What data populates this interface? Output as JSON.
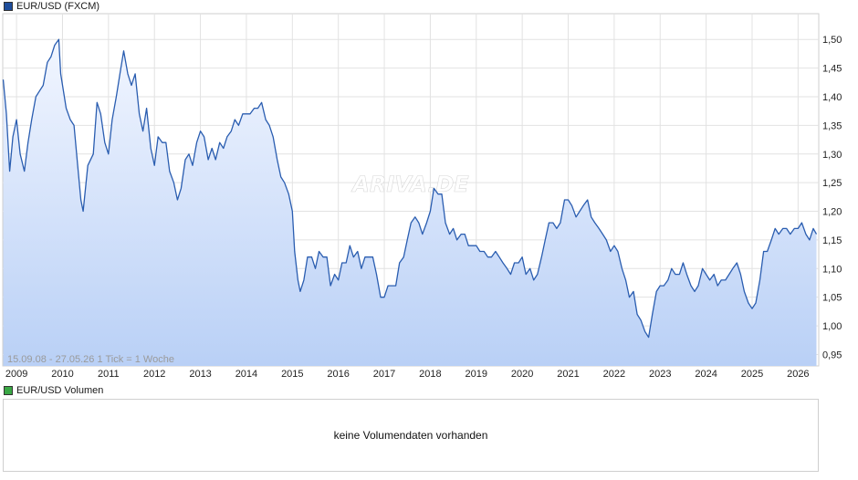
{
  "price_legend": {
    "label": "EUR/USD (FXCM)",
    "color": "#1f4e9c"
  },
  "volume_legend": {
    "label": "EUR/USD Volumen",
    "color": "#3aa845"
  },
  "info_text": "15.09.08 - 27.05.26   1 Tick = 1 Woche",
  "watermark": "ARIVA.DE",
  "no_volume_text": "keine Volumendaten vorhanden",
  "colors": {
    "line": "#2a5db0",
    "fill_top": "#f2f6ff",
    "fill_bottom": "#b9d0f6",
    "grid": "#e2e2e2"
  },
  "chart_data": {
    "type": "area",
    "title": "EUR/USD (FXCM)",
    "x_tick_labels": [
      "2009",
      "2010",
      "2011",
      "2012",
      "2013",
      "2014",
      "2015",
      "2016",
      "2017",
      "2018",
      "2019",
      "2020",
      "2021",
      "2022",
      "2023",
      "2024",
      "2025",
      "2026"
    ],
    "y_tick_labels": [
      "0,95",
      "1,00",
      "1,05",
      "1,10",
      "1,15",
      "1,20",
      "1,25",
      "1,30",
      "1,35",
      "1,40",
      "1,45",
      "1,50"
    ],
    "y_ticks": [
      0.95,
      1.0,
      1.05,
      1.1,
      1.15,
      1.2,
      1.25,
      1.3,
      1.35,
      1.4,
      1.45,
      1.5
    ],
    "ylim": [
      0.93,
      1.545
    ],
    "xlim": [
      2008.7,
      2026.45
    ],
    "grid": true,
    "series": [
      {
        "name": "EUR/USD (FXCM)",
        "points": [
          [
            2008.71,
            1.43
          ],
          [
            2008.78,
            1.37
          ],
          [
            2008.85,
            1.27
          ],
          [
            2008.92,
            1.33
          ],
          [
            2009.0,
            1.36
          ],
          [
            2009.08,
            1.3
          ],
          [
            2009.17,
            1.27
          ],
          [
            2009.25,
            1.32
          ],
          [
            2009.33,
            1.36
          ],
          [
            2009.42,
            1.4
          ],
          [
            2009.5,
            1.41
          ],
          [
            2009.58,
            1.42
          ],
          [
            2009.67,
            1.46
          ],
          [
            2009.75,
            1.47
          ],
          [
            2009.83,
            1.49
          ],
          [
            2009.92,
            1.5
          ],
          [
            2009.96,
            1.44
          ],
          [
            2010.08,
            1.38
          ],
          [
            2010.17,
            1.36
          ],
          [
            2010.25,
            1.35
          ],
          [
            2010.33,
            1.28
          ],
          [
            2010.4,
            1.22
          ],
          [
            2010.45,
            1.2
          ],
          [
            2010.55,
            1.28
          ],
          [
            2010.67,
            1.3
          ],
          [
            2010.75,
            1.39
          ],
          [
            2010.83,
            1.37
          ],
          [
            2010.92,
            1.32
          ],
          [
            2011.0,
            1.3
          ],
          [
            2011.08,
            1.36
          ],
          [
            2011.17,
            1.4
          ],
          [
            2011.25,
            1.44
          ],
          [
            2011.33,
            1.48
          ],
          [
            2011.42,
            1.44
          ],
          [
            2011.5,
            1.42
          ],
          [
            2011.58,
            1.44
          ],
          [
            2011.67,
            1.37
          ],
          [
            2011.75,
            1.34
          ],
          [
            2011.83,
            1.38
          ],
          [
            2011.92,
            1.31
          ],
          [
            2012.0,
            1.28
          ],
          [
            2012.08,
            1.33
          ],
          [
            2012.17,
            1.32
          ],
          [
            2012.25,
            1.32
          ],
          [
            2012.33,
            1.27
          ],
          [
            2012.42,
            1.25
          ],
          [
            2012.5,
            1.22
          ],
          [
            2012.58,
            1.24
          ],
          [
            2012.67,
            1.29
          ],
          [
            2012.75,
            1.3
          ],
          [
            2012.83,
            1.28
          ],
          [
            2012.92,
            1.32
          ],
          [
            2013.0,
            1.34
          ],
          [
            2013.08,
            1.33
          ],
          [
            2013.17,
            1.29
          ],
          [
            2013.25,
            1.31
          ],
          [
            2013.33,
            1.29
          ],
          [
            2013.42,
            1.32
          ],
          [
            2013.5,
            1.31
          ],
          [
            2013.58,
            1.33
          ],
          [
            2013.67,
            1.34
          ],
          [
            2013.75,
            1.36
          ],
          [
            2013.83,
            1.35
          ],
          [
            2013.92,
            1.37
          ],
          [
            2014.0,
            1.37
          ],
          [
            2014.08,
            1.37
          ],
          [
            2014.17,
            1.38
          ],
          [
            2014.25,
            1.38
          ],
          [
            2014.33,
            1.39
          ],
          [
            2014.42,
            1.36
          ],
          [
            2014.5,
            1.35
          ],
          [
            2014.58,
            1.33
          ],
          [
            2014.67,
            1.29
          ],
          [
            2014.75,
            1.26
          ],
          [
            2014.83,
            1.25
          ],
          [
            2014.92,
            1.23
          ],
          [
            2015.0,
            1.2
          ],
          [
            2015.05,
            1.13
          ],
          [
            2015.12,
            1.08
          ],
          [
            2015.17,
            1.06
          ],
          [
            2015.25,
            1.08
          ],
          [
            2015.33,
            1.12
          ],
          [
            2015.42,
            1.12
          ],
          [
            2015.5,
            1.1
          ],
          [
            2015.58,
            1.13
          ],
          [
            2015.67,
            1.12
          ],
          [
            2015.75,
            1.12
          ],
          [
            2015.83,
            1.07
          ],
          [
            2015.92,
            1.09
          ],
          [
            2016.0,
            1.08
          ],
          [
            2016.08,
            1.11
          ],
          [
            2016.17,
            1.11
          ],
          [
            2016.25,
            1.14
          ],
          [
            2016.33,
            1.12
          ],
          [
            2016.42,
            1.13
          ],
          [
            2016.5,
            1.1
          ],
          [
            2016.58,
            1.12
          ],
          [
            2016.67,
            1.12
          ],
          [
            2016.75,
            1.12
          ],
          [
            2016.83,
            1.09
          ],
          [
            2016.92,
            1.05
          ],
          [
            2017.0,
            1.05
          ],
          [
            2017.08,
            1.07
          ],
          [
            2017.17,
            1.07
          ],
          [
            2017.25,
            1.07
          ],
          [
            2017.33,
            1.11
          ],
          [
            2017.42,
            1.12
          ],
          [
            2017.5,
            1.15
          ],
          [
            2017.58,
            1.18
          ],
          [
            2017.67,
            1.19
          ],
          [
            2017.75,
            1.18
          ],
          [
            2017.83,
            1.16
          ],
          [
            2017.92,
            1.18
          ],
          [
            2018.0,
            1.2
          ],
          [
            2018.08,
            1.24
          ],
          [
            2018.17,
            1.23
          ],
          [
            2018.25,
            1.23
          ],
          [
            2018.33,
            1.18
          ],
          [
            2018.42,
            1.16
          ],
          [
            2018.5,
            1.17
          ],
          [
            2018.58,
            1.15
          ],
          [
            2018.67,
            1.16
          ],
          [
            2018.75,
            1.16
          ],
          [
            2018.83,
            1.14
          ],
          [
            2018.92,
            1.14
          ],
          [
            2019.0,
            1.14
          ],
          [
            2019.08,
            1.13
          ],
          [
            2019.17,
            1.13
          ],
          [
            2019.25,
            1.12
          ],
          [
            2019.33,
            1.12
          ],
          [
            2019.42,
            1.13
          ],
          [
            2019.5,
            1.12
          ],
          [
            2019.58,
            1.11
          ],
          [
            2019.67,
            1.1
          ],
          [
            2019.75,
            1.09
          ],
          [
            2019.83,
            1.11
          ],
          [
            2019.92,
            1.11
          ],
          [
            2020.0,
            1.12
          ],
          [
            2020.08,
            1.09
          ],
          [
            2020.17,
            1.1
          ],
          [
            2020.25,
            1.08
          ],
          [
            2020.33,
            1.09
          ],
          [
            2020.42,
            1.12
          ],
          [
            2020.5,
            1.15
          ],
          [
            2020.58,
            1.18
          ],
          [
            2020.67,
            1.18
          ],
          [
            2020.75,
            1.17
          ],
          [
            2020.83,
            1.18
          ],
          [
            2020.92,
            1.22
          ],
          [
            2021.0,
            1.22
          ],
          [
            2021.08,
            1.21
          ],
          [
            2021.17,
            1.19
          ],
          [
            2021.25,
            1.2
          ],
          [
            2021.33,
            1.21
          ],
          [
            2021.42,
            1.22
          ],
          [
            2021.5,
            1.19
          ],
          [
            2021.58,
            1.18
          ],
          [
            2021.67,
            1.17
          ],
          [
            2021.75,
            1.16
          ],
          [
            2021.83,
            1.15
          ],
          [
            2021.92,
            1.13
          ],
          [
            2022.0,
            1.14
          ],
          [
            2022.08,
            1.13
          ],
          [
            2022.17,
            1.1
          ],
          [
            2022.25,
            1.08
          ],
          [
            2022.33,
            1.05
          ],
          [
            2022.42,
            1.06
          ],
          [
            2022.5,
            1.02
          ],
          [
            2022.58,
            1.01
          ],
          [
            2022.67,
            0.99
          ],
          [
            2022.75,
            0.98
          ],
          [
            2022.83,
            1.02
          ],
          [
            2022.92,
            1.06
          ],
          [
            2023.0,
            1.07
          ],
          [
            2023.08,
            1.07
          ],
          [
            2023.17,
            1.08
          ],
          [
            2023.25,
            1.1
          ],
          [
            2023.33,
            1.09
          ],
          [
            2023.42,
            1.09
          ],
          [
            2023.5,
            1.11
          ],
          [
            2023.58,
            1.09
          ],
          [
            2023.67,
            1.07
          ],
          [
            2023.75,
            1.06
          ],
          [
            2023.83,
            1.07
          ],
          [
            2023.92,
            1.1
          ],
          [
            2024.0,
            1.09
          ],
          [
            2024.08,
            1.08
          ],
          [
            2024.17,
            1.09
          ],
          [
            2024.25,
            1.07
          ],
          [
            2024.33,
            1.08
          ],
          [
            2024.42,
            1.08
          ],
          [
            2024.5,
            1.09
          ],
          [
            2024.58,
            1.1
          ],
          [
            2024.67,
            1.11
          ],
          [
            2024.75,
            1.09
          ],
          [
            2024.83,
            1.06
          ],
          [
            2024.92,
            1.04
          ],
          [
            2025.0,
            1.03
          ],
          [
            2025.08,
            1.04
          ],
          [
            2025.17,
            1.08
          ],
          [
            2025.25,
            1.13
          ],
          [
            2025.33,
            1.13
          ],
          [
            2025.42,
            1.15
          ],
          [
            2025.5,
            1.17
          ],
          [
            2025.58,
            1.16
          ],
          [
            2025.67,
            1.17
          ],
          [
            2025.75,
            1.17
          ],
          [
            2025.83,
            1.16
          ],
          [
            2025.92,
            1.17
          ],
          [
            2026.0,
            1.17
          ],
          [
            2026.08,
            1.18
          ],
          [
            2026.17,
            1.16
          ],
          [
            2026.25,
            1.15
          ],
          [
            2026.33,
            1.17
          ],
          [
            2026.4,
            1.16
          ]
        ]
      }
    ]
  }
}
